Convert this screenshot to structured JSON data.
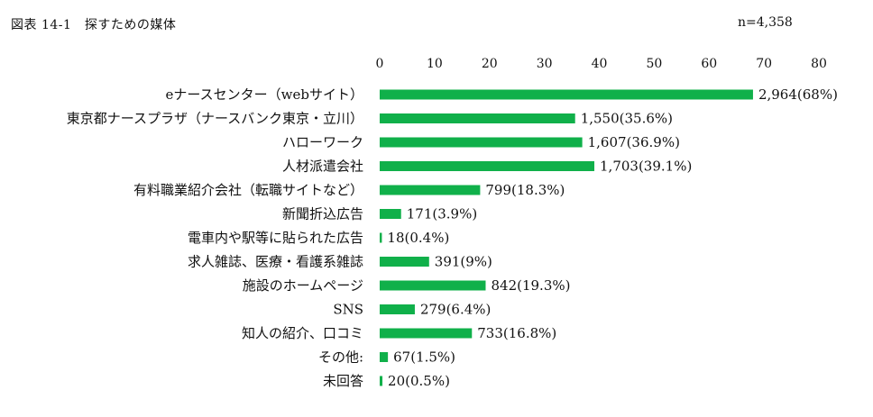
{
  "header": {
    "title": "図表 14-1　探すための媒体",
    "n": "n=4,358"
  },
  "chart_data": {
    "type": "bar",
    "orientation": "horizontal",
    "title": "図表 14-1　探すための媒体",
    "xlim": [
      0,
      80
    ],
    "ticks": [
      0,
      10,
      20,
      30,
      40,
      50,
      60,
      70,
      80
    ],
    "tick_labels": [
      "0",
      "10",
      "20",
      "30",
      "40",
      "50",
      "60",
      "70",
      "80"
    ],
    "grid": false,
    "color": "#10b04a",
    "categories": [
      "eナースセンター（webサイト）",
      "東京都ナースプラザ（ナースバンク東京・立川）",
      "ハローワーク",
      "人材派遣会社",
      "有料職業紹介会社（転職サイトなど）",
      "新聞折込広告",
      "電車内や駅等に貼られた広告",
      "求人雑誌、医療・看護系雑誌",
      "施設のホームページ",
      "SNS",
      "知人の紹介、口コミ",
      "その他:",
      "未回答"
    ],
    "values": [
      68,
      35.6,
      36.9,
      39.1,
      18.3,
      3.9,
      0.4,
      9,
      19.3,
      6.4,
      16.8,
      1.5,
      0.5
    ],
    "data_labels": [
      "2,964(68%)",
      "1,550(35.6%)",
      "1,607(36.9%)",
      "1,703(39.1%)",
      "799(18.3%)",
      "171(3.9%)",
      "18(0.4%)",
      "391(9%)",
      "842(19.3%)",
      "279(6.4%)",
      "733(16.8%)",
      "67(1.5%)",
      "20(0.5%)"
    ]
  }
}
